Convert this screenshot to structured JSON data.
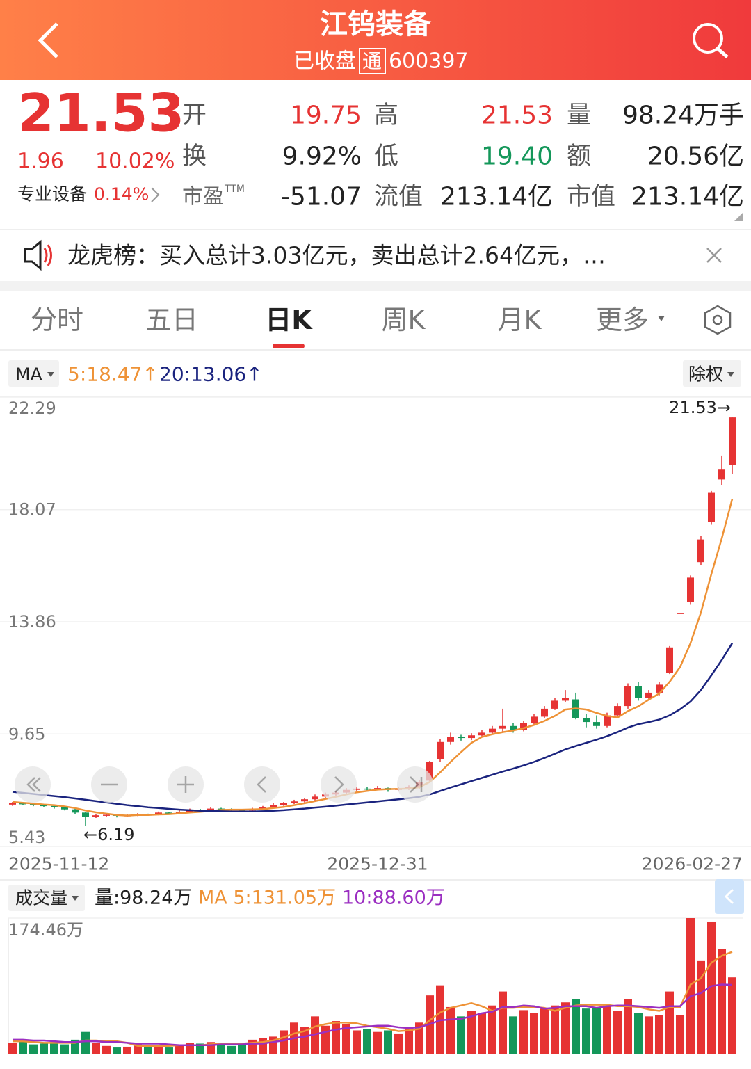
{
  "header": {
    "title": "江钨装备",
    "status": "已收盘",
    "tag": "通",
    "code": "600397"
  },
  "quote": {
    "price": "21.53",
    "change": "1.96",
    "change_pct": "10.02%",
    "sector": "专业设备",
    "sector_pct": "0.14%",
    "fields": [
      {
        "label": "开",
        "value": "19.75"
      },
      {
        "label": "高",
        "value": "21.53"
      },
      {
        "label": "量",
        "value": "98.24万手"
      },
      {
        "label": "换",
        "value": "9.92%"
      },
      {
        "label": "低",
        "value": "19.40"
      },
      {
        "label": "额",
        "value": "20.56亿"
      },
      {
        "label": "市盈",
        "sup": "TTM",
        "value": "-51.07"
      },
      {
        "label": "流值",
        "value": "213.14亿"
      },
      {
        "label": "市值",
        "value": "213.14亿"
      }
    ]
  },
  "notice": "龙虎榜：买入总计3.03亿元，卖出总计2.64亿元，…",
  "tabs": [
    {
      "label": "分时"
    },
    {
      "label": "五日"
    },
    {
      "label": "日K",
      "active": true
    },
    {
      "label": "周K"
    },
    {
      "label": "月K"
    },
    {
      "label": "更多"
    }
  ],
  "ma_bar": {
    "label": "MA",
    "ma5": "5:18.47↑",
    "ma20": "20:13.06↑",
    "rights": "除权"
  },
  "volume_bar": {
    "label": "成交量",
    "volume": "量:98.24万",
    "ma5": "MA 5:131.05万",
    "ma10": "10:88.60万"
  },
  "chart_data": [
    {
      "type": "candlestick",
      "up_color": "#e63333",
      "down_color": "#14975a",
      "ma5_color": "#ee9236",
      "ma20_color": "#1a237e",
      "grid": true,
      "high_label": "21.53→",
      "low_label": "←6.19",
      "ylim": [
        5.43,
        22.29
      ],
      "yticks": [
        22.29,
        18.07,
        13.86,
        9.65,
        5.43
      ],
      "categories": [
        "2025-11-12",
        null,
        null,
        null,
        null,
        null,
        null,
        null,
        null,
        null,
        null,
        null,
        null,
        null,
        null,
        null,
        null,
        null,
        null,
        null,
        null,
        null,
        null,
        null,
        null,
        null,
        null,
        null,
        null,
        null,
        null,
        null,
        null,
        null,
        null,
        "2025-12-31",
        null,
        null,
        null,
        null,
        null,
        null,
        null,
        null,
        null,
        null,
        null,
        null,
        null,
        null,
        null,
        null,
        null,
        null,
        null,
        null,
        null,
        null,
        null,
        null,
        null,
        null,
        null,
        null,
        null,
        null,
        null,
        null,
        null,
        "2026-02-27"
      ],
      "ohlc": [
        [
          7.0,
          7.1,
          6.95,
          7.05
        ],
        [
          7.05,
          7.08,
          6.98,
          7.02
        ],
        [
          7.02,
          7.05,
          6.94,
          6.98
        ],
        [
          6.98,
          7.02,
          6.9,
          6.95
        ],
        [
          6.95,
          6.98,
          6.85,
          6.9
        ],
        [
          6.9,
          6.92,
          6.78,
          6.82
        ],
        [
          6.82,
          6.85,
          6.65,
          6.7
        ],
        [
          6.7,
          6.72,
          6.19,
          6.55
        ],
        [
          6.55,
          6.65,
          6.5,
          6.6
        ],
        [
          6.6,
          6.66,
          6.55,
          6.62
        ],
        [
          6.62,
          6.65,
          6.52,
          6.58
        ],
        [
          6.58,
          6.64,
          6.55,
          6.6
        ],
        [
          6.6,
          6.68,
          6.57,
          6.63
        ],
        [
          6.63,
          6.66,
          6.58,
          6.62
        ],
        [
          6.62,
          6.74,
          6.6,
          6.7
        ],
        [
          6.7,
          6.72,
          6.62,
          6.66
        ],
        [
          6.66,
          6.78,
          6.64,
          6.72
        ],
        [
          6.72,
          6.85,
          6.7,
          6.8
        ],
        [
          6.8,
          6.84,
          6.74,
          6.78
        ],
        [
          6.78,
          6.9,
          6.76,
          6.85
        ],
        [
          6.85,
          6.88,
          6.78,
          6.83
        ],
        [
          6.83,
          6.86,
          6.75,
          6.8
        ],
        [
          6.8,
          6.82,
          6.72,
          6.78
        ],
        [
          6.78,
          6.88,
          6.76,
          6.84
        ],
        [
          6.84,
          6.95,
          6.82,
          6.9
        ],
        [
          6.9,
          7.05,
          6.88,
          6.98
        ],
        [
          6.98,
          7.1,
          6.95,
          7.05
        ],
        [
          7.05,
          7.18,
          7.02,
          7.12
        ],
        [
          7.12,
          7.25,
          7.08,
          7.2
        ],
        [
          7.2,
          7.38,
          7.15,
          7.3
        ],
        [
          7.3,
          7.45,
          7.25,
          7.38
        ],
        [
          7.38,
          7.52,
          7.3,
          7.45
        ],
        [
          7.45,
          7.62,
          7.4,
          7.55
        ],
        [
          7.55,
          7.66,
          7.5,
          7.6
        ],
        [
          7.6,
          7.65,
          7.52,
          7.58
        ],
        [
          7.58,
          7.7,
          7.55,
          7.62
        ],
        [
          7.62,
          7.64,
          7.48,
          7.55
        ],
        [
          7.55,
          7.66,
          7.5,
          7.6
        ],
        [
          7.6,
          7.72,
          7.55,
          7.65
        ],
        [
          7.65,
          7.92,
          7.6,
          7.85
        ],
        [
          7.9,
          8.64,
          7.85,
          8.6
        ],
        [
          8.7,
          9.46,
          8.6,
          9.35
        ],
        [
          9.35,
          9.7,
          9.25,
          9.55
        ],
        [
          9.55,
          9.62,
          9.4,
          9.5
        ],
        [
          9.5,
          9.68,
          9.42,
          9.6
        ],
        [
          9.6,
          9.8,
          9.55,
          9.7
        ],
        [
          9.7,
          9.95,
          9.65,
          9.85
        ],
        [
          9.85,
          10.6,
          9.75,
          9.95
        ],
        [
          9.95,
          10.05,
          9.7,
          9.8
        ],
        [
          9.8,
          10.15,
          9.75,
          10.05
        ],
        [
          10.05,
          10.4,
          10.0,
          10.3
        ],
        [
          10.3,
          10.7,
          10.25,
          10.6
        ],
        [
          10.6,
          11.0,
          10.55,
          10.9
        ],
        [
          10.9,
          11.3,
          10.85,
          11.0
        ],
        [
          10.95,
          11.2,
          10.2,
          10.25
        ],
        [
          10.25,
          10.4,
          9.9,
          10.1
        ],
        [
          10.1,
          10.35,
          9.85,
          9.95
        ],
        [
          9.95,
          10.45,
          9.9,
          10.35
        ],
        [
          10.35,
          10.8,
          10.3,
          10.7
        ],
        [
          10.7,
          11.55,
          10.6,
          11.45
        ],
        [
          11.45,
          11.6,
          10.9,
          11.0
        ],
        [
          11.0,
          11.3,
          10.95,
          11.2
        ],
        [
          11.2,
          11.6,
          11.1,
          11.5
        ],
        [
          11.95,
          12.95,
          11.9,
          12.9
        ],
        [
          14.19,
          14.19,
          14.19,
          14.19
        ],
        [
          14.6,
          15.6,
          14.5,
          15.52
        ],
        [
          16.1,
          17.07,
          16.0,
          16.95
        ],
        [
          17.6,
          18.77,
          17.5,
          18.7
        ],
        [
          19.2,
          20.1,
          19.0,
          19.57
        ],
        [
          19.75,
          21.53,
          19.4,
          21.53
        ]
      ],
      "ma5": [
        7.1,
        7.07,
        7.04,
        7.0,
        6.98,
        6.93,
        6.87,
        6.78,
        6.71,
        6.66,
        6.61,
        6.59,
        6.61,
        6.61,
        6.63,
        6.64,
        6.67,
        6.7,
        6.73,
        6.76,
        6.8,
        6.81,
        6.81,
        6.82,
        6.83,
        6.87,
        6.91,
        6.98,
        7.05,
        7.13,
        7.21,
        7.29,
        7.38,
        7.46,
        7.51,
        7.56,
        7.58,
        7.59,
        7.6,
        7.65,
        7.85,
        8.21,
        8.6,
        8.97,
        9.32,
        9.54,
        9.64,
        9.72,
        9.78,
        9.87,
        9.99,
        10.14,
        10.33,
        10.57,
        10.61,
        10.57,
        10.44,
        10.33,
        10.27,
        10.51,
        10.69,
        10.94,
        11.17,
        11.61,
        12.16,
        13.06,
        14.21,
        15.65,
        16.99,
        18.47
      ],
      "ma20": [
        7.48,
        7.44,
        7.4,
        7.36,
        7.32,
        7.28,
        7.23,
        7.18,
        7.13,
        7.08,
        7.03,
        6.98,
        6.94,
        6.9,
        6.87,
        6.84,
        6.81,
        6.79,
        6.77,
        6.76,
        6.75,
        6.74,
        6.74,
        6.74,
        6.75,
        6.77,
        6.79,
        6.82,
        6.85,
        6.89,
        6.92,
        6.96,
        7.0,
        7.04,
        7.08,
        7.12,
        7.16,
        7.2,
        7.24,
        7.29,
        7.38,
        7.51,
        7.64,
        7.76,
        7.88,
        8.0,
        8.12,
        8.24,
        8.35,
        8.47,
        8.6,
        8.75,
        8.91,
        9.07,
        9.2,
        9.32,
        9.44,
        9.57,
        9.72,
        9.89,
        10.02,
        10.1,
        10.19,
        10.35,
        10.58,
        10.87,
        11.3,
        11.85,
        12.43,
        13.06
      ]
    },
    {
      "type": "volume",
      "ma5_color": "#ee9236",
      "ma10_color": "#9b2fc1",
      "ylim": [
        0,
        174.46
      ],
      "yticks": [
        {
          "value": 174.46,
          "label": "174.46万"
        }
      ],
      "values": [
        14,
        16,
        12,
        13,
        15,
        12,
        18,
        28,
        14,
        10,
        8,
        9,
        12,
        11,
        10,
        8,
        12,
        14,
        13,
        15,
        12,
        10,
        13,
        18,
        20,
        22,
        30,
        40,
        34,
        48,
        36,
        42,
        38,
        30,
        32,
        28,
        30,
        26,
        34,
        40,
        75,
        88,
        60,
        48,
        55,
        52,
        62,
        80,
        48,
        56,
        52,
        58,
        62,
        66,
        70,
        58,
        60,
        62,
        55,
        70,
        52,
        48,
        50,
        80,
        50,
        174.46,
        120,
        170,
        135,
        98.24
      ],
      "ma5": [
        16,
        16,
        15,
        14,
        14,
        14,
        14,
        17,
        17,
        16,
        16,
        14,
        10,
        10,
        10,
        10,
        11,
        11,
        11,
        12,
        13,
        13,
        13,
        14,
        15,
        17,
        21,
        26,
        29,
        35,
        38,
        40,
        40,
        39,
        36,
        34,
        32,
        29,
        30,
        32,
        43,
        53,
        59,
        62,
        65,
        61,
        55,
        59,
        59,
        60,
        60,
        59,
        55,
        59,
        62,
        63,
        63,
        63,
        61,
        61,
        60,
        57,
        55,
        60,
        60,
        89,
        97,
        117,
        126,
        131.05
      ],
      "ma10": [
        18,
        18,
        17,
        17,
        16,
        15,
        15,
        16,
        16,
        15,
        15,
        14,
        13,
        13,
        13,
        12,
        11,
        11,
        11,
        11,
        12,
        12,
        12,
        13,
        13,
        15,
        17,
        20,
        22,
        25,
        28,
        31,
        33,
        34,
        35,
        36,
        36,
        34,
        33,
        34,
        38,
        43,
        44,
        45,
        48,
        52,
        54,
        60,
        60,
        62,
        61,
        58,
        59,
        61,
        61,
        61,
        59,
        61,
        62,
        62,
        61,
        60,
        59,
        61,
        61,
        74,
        78,
        87,
        89,
        88.6
      ]
    }
  ]
}
